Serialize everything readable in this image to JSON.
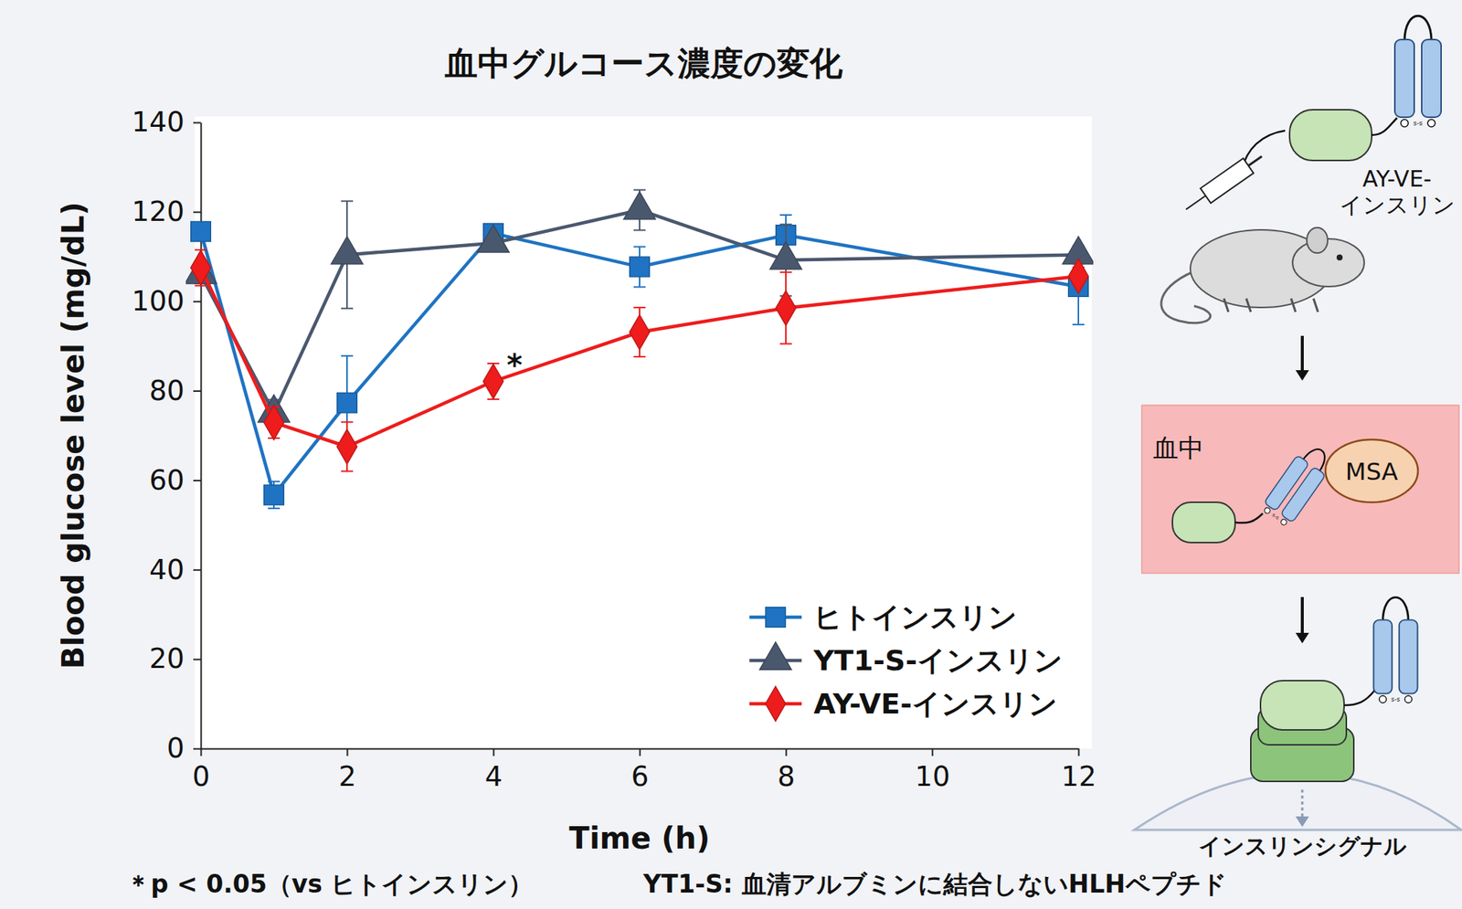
{
  "chart_data": {
    "type": "line",
    "title": "血中グルコース濃度の変化",
    "x_label": "Time (h)",
    "y_label": "Blood glucose level (mg/dL)",
    "x": [
      0,
      1,
      2,
      4,
      6,
      8,
      12
    ],
    "xlim": [
      0,
      12
    ],
    "xticks": [
      0,
      2,
      4,
      6,
      8,
      10,
      12
    ],
    "ylim": [
      0,
      140
    ],
    "yticks": [
      0,
      20,
      40,
      60,
      80,
      100,
      120,
      140
    ],
    "legend": "lower right",
    "series": [
      {
        "name": "ヒトインスリン",
        "color": "#1f73c2",
        "marker": "square",
        "values": [
          115.6,
          56.7,
          77.3,
          115.2,
          107.7,
          114.8,
          103.3
        ],
        "errors": [
          1.5,
          3,
          10.5,
          1.5,
          4.5,
          4.5,
          8.5
        ]
      },
      {
        "name": "YT1-S-インスリン",
        "color": "#4a586e",
        "marker": "triangle",
        "values": [
          106,
          75,
          110.4,
          113,
          120.4,
          109.2,
          110.4
        ],
        "errors": [
          2,
          3,
          12,
          1,
          4.5,
          8,
          2
        ]
      },
      {
        "name": "AY-VE-インスリン",
        "color": "#ee1c1c",
        "marker": "diamond",
        "values": [
          107.5,
          72.9,
          67.5,
          82.1,
          93.1,
          98.5,
          105.6
        ],
        "errors": [
          4,
          3.5,
          5.5,
          4,
          5.5,
          8,
          2
        ]
      }
    ],
    "annotations": [
      {
        "text": "*",
        "x": 4,
        "y": 82.1
      }
    ],
    "footnotes": [
      "＊p < 0.05（vs ヒトインスリン）",
      "YT1-S: 血清アルブミンに結合しないHLHペプチド"
    ]
  },
  "diagram": {
    "labels": {
      "drug": "AY-VE-インスリン",
      "blood": "血中",
      "albumin": "MSA",
      "signal": "インスリンシグナル",
      "bond": "s-s"
    }
  }
}
